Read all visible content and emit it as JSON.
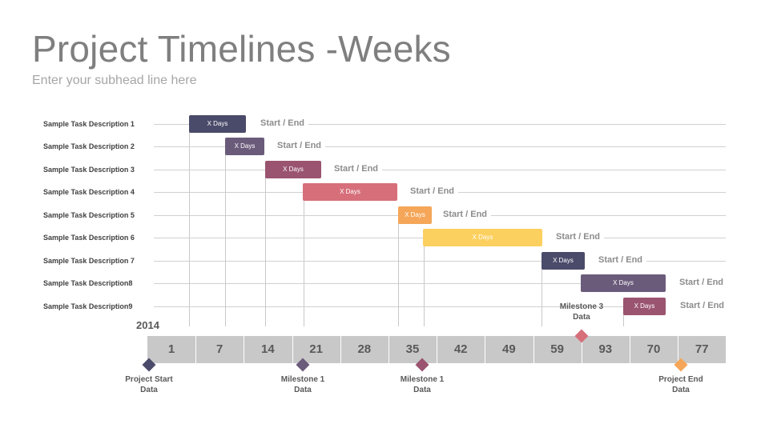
{
  "title": "Project Timelines -Weeks",
  "subtitle": "Enter your subhead line here",
  "year": "2014",
  "colors": {
    "navy": "#4a4a6a",
    "purple": "#6b5b7b",
    "plum": "#9a5470",
    "rose": "#d66f7a",
    "orange": "#f5a658",
    "yellow": "#fcd05f",
    "axis": "#c8c8c8"
  },
  "weeks": [
    "1",
    "7",
    "14",
    "21",
    "28",
    "35",
    "42",
    "49",
    "59",
    "93",
    "70",
    "77"
  ],
  "tasks": [
    {
      "label": "Sample Task Description 1",
      "bar_text": "X Days",
      "status": "Start / End",
      "color": "#4a4a6a"
    },
    {
      "label": "Sample Task Description 2",
      "bar_text": "X Days",
      "status": "Start / End",
      "color": "#6b5b7b"
    },
    {
      "label": "Sample Task Description 3",
      "bar_text": "X Days",
      "status": "Start / End",
      "color": "#9a5470"
    },
    {
      "label": "Sample Task Description 4",
      "bar_text": "X Days",
      "status": "Start / End",
      "color": "#d66f7a"
    },
    {
      "label": "Sample Task Description 5",
      "bar_text": "X Days",
      "status": "Start / End",
      "color": "#f5a658"
    },
    {
      "label": "Sample Task Description 6",
      "bar_text": "X Days",
      "status": "Start / End",
      "color": "#fcd05f"
    },
    {
      "label": "Sample Task Description 7",
      "bar_text": "X Days",
      "status": "Start / End",
      "color": "#4a4a6a"
    },
    {
      "label": "Sample Task Description8",
      "bar_text": "X Days",
      "status": "Start / End",
      "color": "#6b5b7b"
    },
    {
      "label": "Sample Task Description9",
      "bar_text": "X Days",
      "status": "Start / End",
      "color": "#9a5470"
    }
  ],
  "milestones": [
    {
      "line1": "Project Start",
      "line2": "Data",
      "color": "#4a4a6a"
    },
    {
      "line1": "Milestone 1",
      "line2": "Data",
      "color": "#6b5b7b"
    },
    {
      "line1": "Milestone 1",
      "line2": "Data",
      "color": "#9a5470"
    },
    {
      "line1": "Milestone 3",
      "line2": "Data",
      "color": "#d66f7a"
    },
    {
      "line1": "Project End",
      "line2": "Data",
      "color": "#f5a658"
    }
  ]
}
